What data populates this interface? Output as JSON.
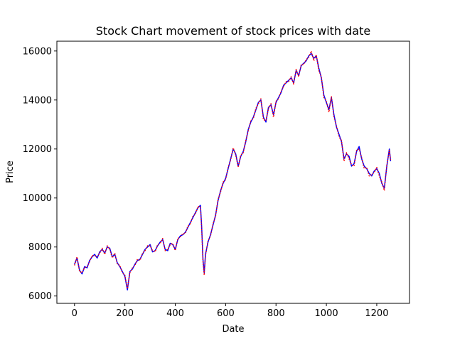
{
  "chart_data": {
    "type": "line",
    "title": "Stock Chart movement of stock prices with date",
    "xlabel": "Date",
    "ylabel": "Price",
    "xlim": [
      -70,
      1330
    ],
    "ylim": [
      5700,
      16400
    ],
    "xticks": [
      0,
      200,
      400,
      600,
      800,
      1000,
      1200
    ],
    "yticks": [
      6000,
      8000,
      10000,
      12000,
      14000,
      16000
    ],
    "grid": false,
    "legend": "none",
    "series": [
      {
        "style": "solid",
        "color": "#0000ff",
        "x": [
          0,
          10,
          20,
          30,
          40,
          50,
          60,
          70,
          80,
          90,
          100,
          110,
          120,
          130,
          140,
          150,
          160,
          170,
          180,
          190,
          200,
          210,
          220,
          230,
          240,
          250,
          260,
          270,
          280,
          290,
          300,
          310,
          320,
          330,
          340,
          350,
          360,
          370,
          380,
          390,
          400,
          410,
          420,
          430,
          440,
          450,
          460,
          470,
          480,
          490,
          500,
          505,
          510,
          515,
          520,
          530,
          540,
          550,
          560,
          570,
          580,
          590,
          600,
          610,
          620,
          630,
          640,
          650,
          660,
          670,
          680,
          690,
          700,
          710,
          720,
          730,
          740,
          750,
          760,
          770,
          780,
          790,
          800,
          810,
          820,
          830,
          840,
          850,
          860,
          870,
          880,
          890,
          900,
          910,
          920,
          930,
          940,
          950,
          960,
          970,
          980,
          990,
          1000,
          1010,
          1020,
          1030,
          1040,
          1050,
          1060,
          1070,
          1080,
          1090,
          1100,
          1110,
          1120,
          1130,
          1140,
          1150,
          1160,
          1170,
          1180,
          1190,
          1200,
          1210,
          1220,
          1230,
          1240,
          1250,
          1255
        ],
        "y": [
          7300,
          7550,
          7050,
          6900,
          7200,
          7150,
          7450,
          7600,
          7700,
          7550,
          7800,
          7900,
          7750,
          8000,
          7950,
          7600,
          7700,
          7350,
          7200,
          7000,
          6800,
          6250,
          7000,
          7100,
          7300,
          7450,
          7500,
          7700,
          7900,
          8000,
          8100,
          7800,
          7850,
          8050,
          8200,
          8300,
          7900,
          7850,
          8150,
          8100,
          7900,
          8300,
          8450,
          8500,
          8600,
          8800,
          9000,
          9200,
          9400,
          9600,
          9700,
          8800,
          7500,
          6950,
          7700,
          8200,
          8500,
          8900,
          9300,
          9900,
          10300,
          10600,
          10800,
          11200,
          11600,
          12000,
          11800,
          11300,
          11700,
          11900,
          12300,
          12800,
          13100,
          13300,
          13600,
          13900,
          14000,
          13300,
          13100,
          13700,
          13800,
          13400,
          13900,
          14100,
          14300,
          14600,
          14700,
          14800,
          14900,
          14700,
          15200,
          15000,
          15400,
          15500,
          15600,
          15800,
          15900,
          15700,
          15800,
          15300,
          14900,
          14200,
          13900,
          13600,
          14100,
          13400,
          12900,
          12600,
          12300,
          11600,
          11800,
          11700,
          11300,
          11400,
          11900,
          12100,
          11600,
          11300,
          11200,
          11000,
          10900,
          11100,
          11200,
          11000,
          10600,
          10400,
          11300,
          12000,
          11500
        ]
      },
      {
        "style": "dotted",
        "color": "#ff0000",
        "x": [
          0,
          10,
          20,
          30,
          40,
          50,
          60,
          70,
          80,
          90,
          100,
          110,
          120,
          130,
          140,
          150,
          160,
          170,
          180,
          190,
          200,
          210,
          220,
          230,
          240,
          250,
          260,
          270,
          280,
          290,
          300,
          310,
          320,
          330,
          340,
          350,
          360,
          370,
          380,
          390,
          400,
          410,
          420,
          430,
          440,
          450,
          460,
          470,
          480,
          490,
          500,
          505,
          510,
          515,
          520,
          530,
          540,
          550,
          560,
          570,
          580,
          590,
          600,
          610,
          620,
          630,
          640,
          650,
          660,
          670,
          680,
          690,
          700,
          710,
          720,
          730,
          740,
          750,
          760,
          770,
          780,
          790,
          800,
          810,
          820,
          830,
          840,
          850,
          860,
          870,
          880,
          890,
          900,
          910,
          920,
          930,
          940,
          950,
          960,
          970,
          980,
          990,
          1000,
          1010,
          1020,
          1030,
          1040,
          1050,
          1060,
          1070,
          1080,
          1090,
          1100,
          1110,
          1120,
          1130,
          1140,
          1150,
          1160,
          1170,
          1180,
          1190,
          1200,
          1210,
          1220,
          1230,
          1240,
          1250,
          1255
        ],
        "y": [
          7250,
          7600,
          7000,
          6950,
          7150,
          7200,
          7400,
          7650,
          7650,
          7600,
          7750,
          7950,
          7700,
          8050,
          7900,
          7550,
          7750,
          7300,
          7250,
          6950,
          6850,
          6300,
          6950,
          7150,
          7250,
          7500,
          7450,
          7750,
          7850,
          8050,
          8050,
          7850,
          7800,
          8100,
          8150,
          8350,
          7850,
          7900,
          8100,
          8150,
          7850,
          8350,
          8400,
          8550,
          8550,
          8850,
          8950,
          9250,
          9350,
          9650,
          9650,
          8700,
          7400,
          6850,
          7650,
          8250,
          8450,
          8950,
          9250,
          9950,
          10250,
          10650,
          10750,
          11250,
          11550,
          12050,
          11750,
          11250,
          11750,
          11850,
          12350,
          12750,
          13150,
          13250,
          13650,
          13850,
          14050,
          13200,
          13150,
          13650,
          13850,
          13300,
          13950,
          14050,
          14350,
          14550,
          14750,
          14750,
          14950,
          14650,
          15250,
          14950,
          15450,
          15450,
          15650,
          15750,
          16000,
          15600,
          15850,
          15200,
          14950,
          14100,
          13950,
          13500,
          14150,
          13300,
          12950,
          12500,
          12350,
          11500,
          11850,
          11600,
          11350,
          11300,
          11950,
          12000,
          11650,
          11200,
          11250,
          10900,
          10950,
          11050,
          11250,
          10900,
          10650,
          10300,
          11350,
          11950,
          11550
        ]
      }
    ]
  }
}
